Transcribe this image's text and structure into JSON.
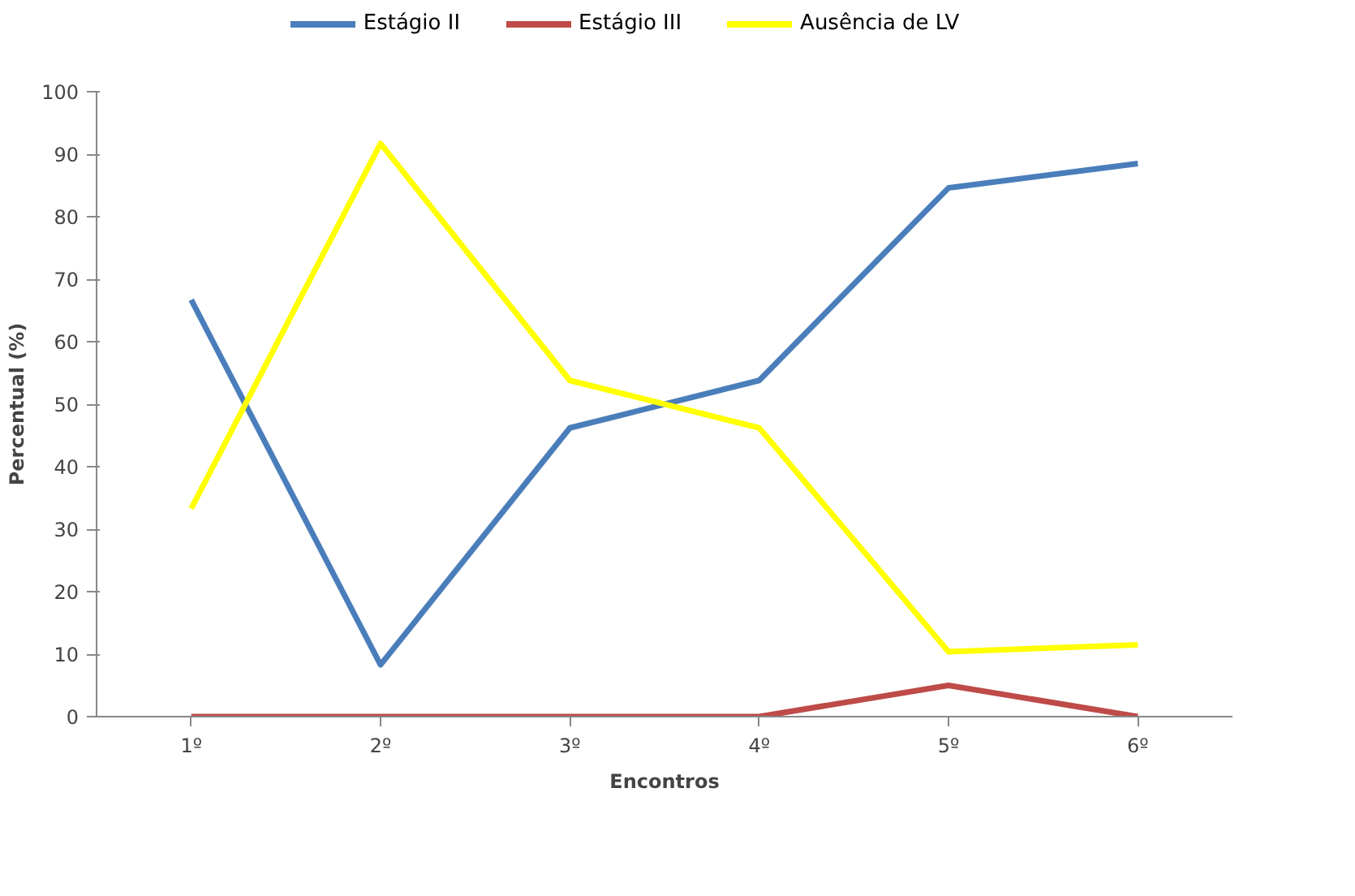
{
  "chart_data": {
    "type": "line",
    "xlabel": "Encontros",
    "ylabel": "Percentual (%)",
    "categories": [
      "1º",
      "2º",
      "3º",
      "4º",
      "5º",
      "6º"
    ],
    "series": [
      {
        "name": "Estágio II",
        "color": "#4a7ebb",
        "values": [
          66.7,
          8.3,
          46.2,
          53.8,
          84.6,
          88.5
        ]
      },
      {
        "name": "Estágio III",
        "color": "#be4b48",
        "values": [
          0,
          0,
          0,
          0,
          5,
          0
        ]
      },
      {
        "name": "Ausência de LV",
        "color": "#ffff00",
        "values": [
          33.3,
          91.7,
          53.8,
          46.2,
          10.4,
          11.5
        ]
      }
    ],
    "ylim": [
      0,
      100
    ],
    "yticks": [
      0,
      10,
      20,
      30,
      40,
      50,
      60,
      70,
      80,
      90,
      100
    ],
    "grid": false,
    "legend": "top",
    "marker": "none",
    "line_style": "solid"
  }
}
